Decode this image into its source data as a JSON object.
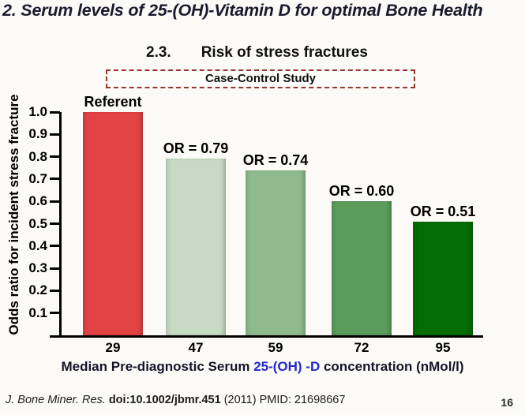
{
  "slide": {
    "title": "2. Serum levels of 25-(OH)-Vitamin D for optimal Bone Health",
    "subtitle_number": "2.3.",
    "subtitle_text": "Risk of stress fractures",
    "study_badge": "Case-Control Study",
    "footer": {
      "journal": "J. Bone Miner. Res.",
      "doi": " doi:10.1002/jbmr.451",
      "rest": " (2011) PMID: 21698667"
    },
    "page_number": "16"
  },
  "chart_data": {
    "type": "bar",
    "title": "Risk of stress fractures",
    "categories": [
      "29",
      "47",
      "59",
      "72",
      "95"
    ],
    "values": [
      1.0,
      0.79,
      0.74,
      0.6,
      0.51
    ],
    "bar_labels": [
      "Referent",
      "OR = 0.79",
      "OR = 0.74",
      "OR = 0.60",
      "OR = 0.51"
    ],
    "bar_colors": [
      "#e24345",
      "#c6dac4",
      "#8eba8e",
      "#5a9c5c",
      "#046c04"
    ],
    "ylabel": "Odds ratio for incident stress fracture",
    "xlabel_prefix": "Median Pre-diagnostic Serum ",
    "xlabel_highlight": "25-(OH) -D",
    "xlabel_suffix": " concentration (nMol/l)",
    "xlabel_highlight_color": "#2228cc",
    "yticks": [
      "1.0",
      "0.9",
      "0.8",
      "0.7",
      "0.6",
      "0.5",
      "0.4",
      "0.3",
      "0.2",
      "0.1"
    ],
    "ylim": [
      0,
      1.0
    ],
    "grid": false,
    "legend": "none"
  }
}
